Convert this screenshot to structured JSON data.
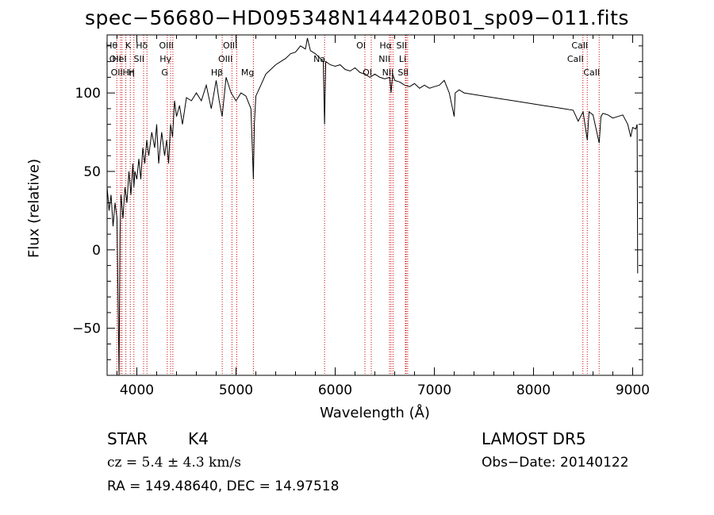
{
  "chart_data": {
    "type": "line",
    "title": "spec−56680−HD095348N144420B01_sp09−011.fits",
    "xlabel": "Wavelength (Å)",
    "ylabel": "Flux (relative)",
    "xlim": [
      3700,
      9100
    ],
    "ylim": [
      -80,
      137
    ],
    "xticks": [
      4000,
      5000,
      6000,
      7000,
      8000,
      9000
    ],
    "yticks": [
      -50,
      0,
      50,
      100
    ],
    "grid": false,
    "series": [
      {
        "x": [
          3700,
          3720,
          3740,
          3760,
          3780,
          3800,
          3820,
          3830,
          3840,
          3860,
          3880,
          3900,
          3920,
          3940,
          3960,
          3970,
          3980,
          4000,
          4020,
          4040,
          4060,
          4080,
          4100,
          4120,
          4150,
          4180,
          4200,
          4220,
          4250,
          4280,
          4300,
          4320,
          4340,
          4360,
          4380,
          4400,
          4430,
          4460,
          4500,
          4550,
          4600,
          4650,
          4700,
          4750,
          4800,
          4830,
          4860,
          4900,
          4950,
          5000,
          5050,
          5100,
          5150,
          5175,
          5185,
          5200,
          5250,
          5300,
          5350,
          5400,
          5450,
          5500,
          5550,
          5600,
          5650,
          5700,
          5720,
          5750,
          5800,
          5850,
          5880,
          5893,
          5905,
          5950,
          6000,
          6050,
          6100,
          6150,
          6200,
          6250,
          6300,
          6350,
          6400,
          6450,
          6500,
          6550,
          6563,
          6580,
          6600,
          6650,
          6700,
          6750,
          6800,
          6850,
          6900,
          6950,
          7000,
          7050,
          7100,
          7150,
          7200,
          7210,
          7250,
          7300,
          7400,
          7500,
          7600,
          7700,
          7800,
          7900,
          8000,
          8100,
          8200,
          8300,
          8400,
          8450,
          8500,
          8542,
          8560,
          8600,
          8662,
          8680,
          8700,
          8750,
          8800,
          8850,
          8900,
          8950,
          8980,
          9000,
          9030,
          9045,
          9050
        ],
        "y": [
          40,
          25,
          35,
          15,
          30,
          20,
          -80,
          10,
          35,
          20,
          40,
          30,
          50,
          35,
          55,
          40,
          50,
          45,
          58,
          45,
          65,
          55,
          70,
          60,
          75,
          65,
          80,
          55,
          75,
          60,
          70,
          55,
          80,
          72,
          95,
          85,
          92,
          80,
          97,
          95,
          100,
          95,
          105,
          90,
          108,
          95,
          85,
          110,
          100,
          95,
          100,
          98,
          90,
          45,
          80,
          98,
          105,
          112,
          115,
          118,
          120,
          122,
          125,
          126,
          130,
          128,
          135,
          127,
          125,
          122,
          120,
          80,
          120,
          118,
          117,
          118,
          115,
          114,
          116,
          113,
          112,
          110,
          112,
          110,
          109,
          110,
          100,
          112,
          108,
          107,
          105,
          104,
          106,
          103,
          105,
          103,
          104,
          105,
          108,
          100,
          85,
          100,
          102,
          100,
          99,
          98,
          97,
          96,
          95,
          94,
          93,
          92,
          91,
          90,
          89,
          82,
          88,
          70,
          88,
          86,
          68,
          85,
          87,
          86,
          84,
          85,
          86,
          80,
          72,
          78,
          77,
          80,
          -15
        ]
      }
    ],
    "spectral_lines": [
      {
        "x": 3798,
        "labels": [
          "Hθ"
        ],
        "row": 0,
        "side": "left"
      },
      {
        "x": 3835,
        "labels": [
          "OII"
        ],
        "row": 1,
        "side": "left"
      },
      {
        "x": 3850,
        "labels": [
          "OII"
        ],
        "row": 2,
        "side": "left"
      },
      {
        "x": 3889,
        "labels": [
          "HeI"
        ],
        "row": 1,
        "side": "left"
      },
      {
        "x": 3934,
        "labels": [
          "K"
        ],
        "row": 0,
        "side": "left"
      },
      {
        "x": 3970,
        "labels": [
          "Hη",
          "H"
        ],
        "row": 2,
        "side": "left"
      },
      {
        "x": 4068,
        "labels": [
          "SII"
        ],
        "row": 1,
        "side": "left"
      },
      {
        "x": 4102,
        "labels": [
          "Hδ"
        ],
        "row": 0,
        "side": "left"
      },
      {
        "x": 4307,
        "labels": [
          "G"
        ],
        "row": 2,
        "side": "left"
      },
      {
        "x": 4340,
        "labels": [
          "Hγ"
        ],
        "row": 1,
        "side": "left"
      },
      {
        "x": 4363,
        "labels": [
          "OIII"
        ],
        "row": 0,
        "side": "left"
      },
      {
        "x": 4861,
        "labels": [
          "Hβ"
        ],
        "row": 2,
        "side": "left"
      },
      {
        "x": 4959,
        "labels": [
          "OIII"
        ],
        "row": 1,
        "side": "left"
      },
      {
        "x": 5007,
        "labels": [
          "OIII"
        ],
        "row": 0,
        "side": "left"
      },
      {
        "x": 5175,
        "labels": [
          "Mg"
        ],
        "row": 2,
        "side": "left"
      },
      {
        "x": 5893,
        "labels": [
          "Na"
        ],
        "row": 1,
        "side": "left"
      },
      {
        "x": 6300,
        "labels": [
          "OI"
        ],
        "row": 0,
        "side": "left"
      },
      {
        "x": 6364,
        "labels": [
          "OI"
        ],
        "row": 2,
        "side": "left"
      },
      {
        "x": 6548,
        "labels": [
          "NII"
        ],
        "row": 1,
        "side": "left"
      },
      {
        "x": 6563,
        "labels": [
          "Hα"
        ],
        "row": 0,
        "side": "left"
      },
      {
        "x": 6583,
        "labels": [
          "NII"
        ],
        "row": 2,
        "side": "left"
      },
      {
        "x": 6708,
        "labels": [
          "Li"
        ],
        "row": 1,
        "side": "left"
      },
      {
        "x": 6716,
        "labels": [
          "SII"
        ],
        "row": 0,
        "side": "left"
      },
      {
        "x": 6731,
        "labels": [
          "SII"
        ],
        "row": 2,
        "side": "left"
      },
      {
        "x": 8498,
        "labels": [
          "CaII"
        ],
        "row": 1,
        "side": "left"
      },
      {
        "x": 8542,
        "labels": [
          "CaII"
        ],
        "row": 0,
        "side": "left"
      },
      {
        "x": 8662,
        "labels": [
          "CaII"
        ],
        "row": 2,
        "side": "left"
      }
    ]
  },
  "info": {
    "object_class": "STAR",
    "subclass": "K4",
    "cz": "cz = 5.4 ± 4.3 km/s",
    "radec": "RA = 149.48640, DEC =  14.97518",
    "survey": "LAMOST DR5",
    "obs_date": "Obs−Date: 20140122"
  }
}
